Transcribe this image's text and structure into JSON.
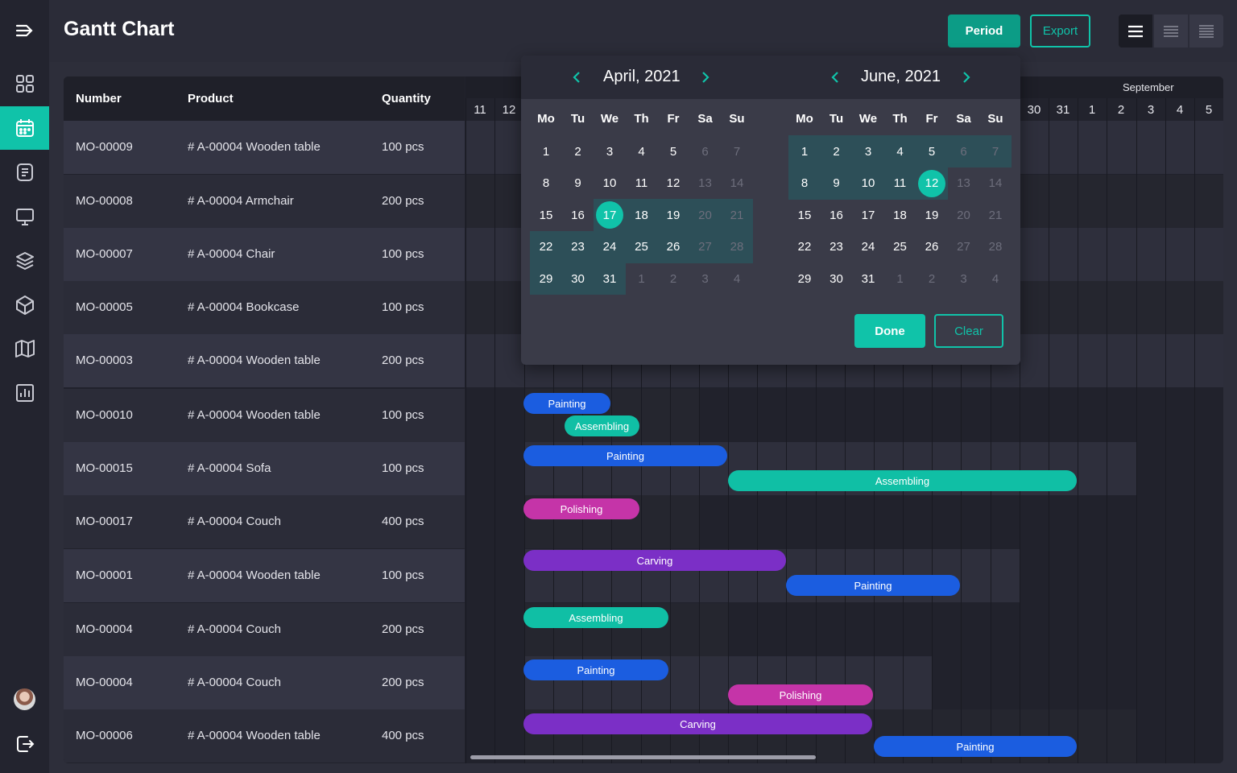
{
  "header": {
    "title": "Gantt Chart",
    "period_label": "Period",
    "export_label": "Export"
  },
  "sidebar": {
    "items": [
      {
        "icon": "menu-expand-icon"
      },
      {
        "icon": "dashboard-icon"
      },
      {
        "icon": "calendar-icon",
        "active": true
      },
      {
        "icon": "document-icon"
      },
      {
        "icon": "monitor-icon"
      },
      {
        "icon": "layers-icon"
      },
      {
        "icon": "cube-icon"
      },
      {
        "icon": "map-icon"
      },
      {
        "icon": "chart-icon"
      },
      {
        "icon": "avatar"
      },
      {
        "icon": "logout-icon"
      }
    ]
  },
  "table": {
    "headers": {
      "number": "Number",
      "product": "Product",
      "quantity": "Quantity"
    },
    "rows": [
      {
        "number": "MO-00009",
        "product": "# A-00004 Wooden table",
        "quantity": "100 pcs"
      },
      {
        "number": "MO-00008",
        "product": "# A-00004 Armchair",
        "quantity": "200 pcs"
      },
      {
        "number": "MO-00007",
        "product": "# A-00004 Chair",
        "quantity": "100 pcs"
      },
      {
        "number": "MO-00005",
        "product": "# A-00004 Bookcase",
        "quantity": "100 pcs"
      },
      {
        "number": "MO-00003",
        "product": "# A-00004 Wooden table",
        "quantity": "200 pcs"
      },
      {
        "number": "MO-00010",
        "product": "# A-00004 Wooden table",
        "quantity": "100 pcs"
      },
      {
        "number": "MO-00015",
        "product": "# A-00004 Sofa",
        "quantity": "100 pcs"
      },
      {
        "number": "MO-00017",
        "product": "# A-00004 Couch",
        "quantity": "400 pcs"
      },
      {
        "number": "MO-00001",
        "product": "# A-00004 Wooden table",
        "quantity": "100 pcs"
      },
      {
        "number": "MO-00004",
        "product": "# A-00004 Couch",
        "quantity": "200 pcs"
      },
      {
        "number": "MO-00004",
        "product": "# A-00004 Couch",
        "quantity": "200 pcs"
      },
      {
        "number": "MO-00006",
        "product": "# A-00004 Wooden table",
        "quantity": "400 pcs"
      }
    ]
  },
  "gantt": {
    "month_label": "September",
    "left_days": [
      "11",
      "12"
    ],
    "right_days": [
      "30",
      "31",
      "1",
      "2",
      "3",
      "4",
      "5"
    ],
    "bars": [
      {
        "label": "Painting",
        "type": "painting"
      },
      {
        "label": "Assembling",
        "type": "assembling"
      },
      {
        "label": "Painting",
        "type": "painting"
      },
      {
        "label": "Assembling",
        "type": "assembling"
      },
      {
        "label": "Polishing",
        "type": "polishing"
      },
      {
        "label": "Carving",
        "type": "carving"
      },
      {
        "label": "Painting",
        "type": "painting"
      },
      {
        "label": "Assembling",
        "type": "assembling"
      },
      {
        "label": "Painting",
        "type": "painting"
      },
      {
        "label": "Polishing",
        "type": "polishing"
      },
      {
        "label": "Carving",
        "type": "carving"
      },
      {
        "label": "Painting",
        "type": "painting"
      }
    ],
    "colors": {
      "painting": "#1b5de0",
      "assembling": "#10bfa5",
      "polishing": "#c534a8",
      "carving": "#7b2fc6"
    }
  },
  "picker": {
    "left_title": "April, 2021",
    "right_title": "June, 2021",
    "weekdays": [
      "Mo",
      "Tu",
      "We",
      "Th",
      "Fr",
      "Sa",
      "Su"
    ],
    "left_weeks": [
      [
        "1",
        "2",
        "3",
        "4",
        "5",
        "6",
        "7"
      ],
      [
        "8",
        "9",
        "10",
        "11",
        "12",
        "13",
        "14"
      ],
      [
        "15",
        "16",
        "17",
        "18",
        "19",
        "20",
        "21"
      ],
      [
        "22",
        "23",
        "24",
        "25",
        "26",
        "27",
        "28"
      ],
      [
        "29",
        "30",
        "31",
        "1",
        "2",
        "3",
        "4"
      ]
    ],
    "right_weeks": [
      [
        "1",
        "2",
        "3",
        "4",
        "5",
        "6",
        "7"
      ],
      [
        "8",
        "9",
        "10",
        "11",
        "12",
        "13",
        "14"
      ],
      [
        "15",
        "16",
        "17",
        "18",
        "19",
        "20",
        "21"
      ],
      [
        "22",
        "23",
        "24",
        "25",
        "26",
        "27",
        "28"
      ],
      [
        "29",
        "30",
        "31",
        "1",
        "2",
        "3",
        "4"
      ]
    ],
    "left_selected": "17",
    "right_selected": "12",
    "done_label": "Done",
    "clear_label": "Clear"
  }
}
